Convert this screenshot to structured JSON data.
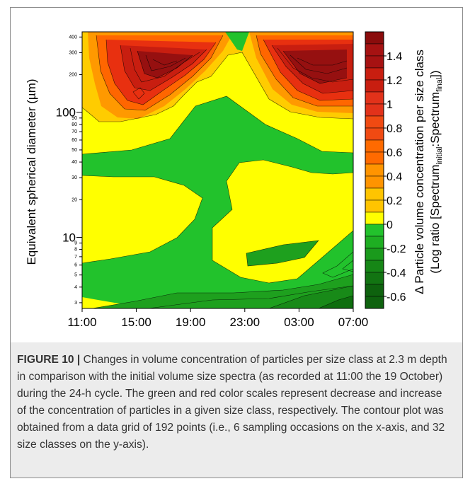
{
  "chart_data": {
    "type": "heatmap",
    "title": "",
    "xlabel": "",
    "ylabel": "Equivalent spherical diameter (µm)",
    "x": [
      "11:00",
      "15:00",
      "19:00",
      "23:00",
      "03:00",
      "07:00"
    ],
    "y_scale": "log",
    "ylim": [
      2.7,
      440
    ],
    "y_ticks_major": [
      10,
      100
    ],
    "y_ticks_minor": [
      3,
      4,
      5,
      6,
      7,
      8,
      9,
      20,
      30,
      40,
      50,
      60,
      70,
      80,
      90,
      200,
      300,
      400
    ],
    "colorbar": {
      "label_line1": "Δ Particle volume concentration per size class",
      "label_line2": "(Log ratio [Spectrum",
      "label_sub1": "initial",
      "label_mid": ":Spectrum",
      "label_sub2": "final",
      "label_end": "])",
      "ticks": [
        "1.4",
        "1.2",
        "1",
        "0.8",
        "0.6",
        "0.4",
        "0.2",
        "0",
        "-0.2",
        "-0.4",
        "-0.6"
      ],
      "levels": [
        1.6,
        1.5,
        1.4,
        1.3,
        1.2,
        1.1,
        1.0,
        0.9,
        0.8,
        0.7,
        0.6,
        0.5,
        0.4,
        0.3,
        0.2,
        0.1,
        0.0,
        -0.1,
        -0.2,
        -0.3,
        -0.4,
        -0.5,
        -0.6,
        -0.7
      ]
    },
    "legend": "right colorbar",
    "grid": false
  },
  "caption": {
    "label": "FIGURE 10 |",
    "text": " Changes in volume concentration of particles per size class at 2.3 m depth in comparison with the initial volume size spectra (as recorded at 11:00 the 19 October) during the 24-h cycle. The green and red color scales represent decrease and increase of the concentration of particles in a given size class, respectively. The contour plot was obtained from a data grid of 192 points (i.e., 6 sampling occasions on the x-axis, and 32 size classes on the y-axis)."
  },
  "colors": {
    "increase": "#c8261c",
    "zero": "#ffff00",
    "decrease": "#22c22c"
  }
}
